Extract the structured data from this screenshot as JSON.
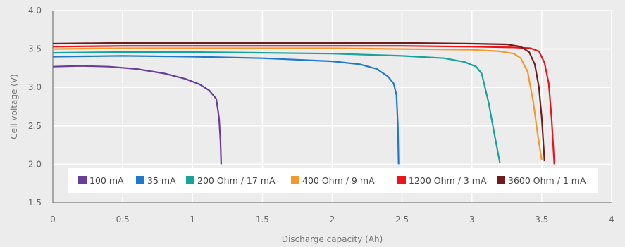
{
  "chart_data": {
    "type": "line",
    "xlabel": "Discharge capacity (Ah)",
    "ylabel": "Cell voltage (V)",
    "xlim": [
      0,
      4
    ],
    "ylim": [
      1.5,
      4.0
    ],
    "xticks": [
      "0",
      "0.5",
      "1",
      "1.5",
      "2",
      "2.5",
      "3",
      "3.5",
      "4"
    ],
    "yticks": [
      "1.5",
      "2.0",
      "2.5",
      "3.0",
      "3.5",
      "4.0"
    ],
    "grid": true,
    "legend_position": "bottom",
    "series": [
      {
        "name": "100 mA",
        "color": "#6a3d9a",
        "points": [
          [
            0,
            3.27
          ],
          [
            0.2,
            3.28
          ],
          [
            0.4,
            3.27
          ],
          [
            0.6,
            3.24
          ],
          [
            0.8,
            3.18
          ],
          [
            0.95,
            3.11
          ],
          [
            1.05,
            3.04
          ],
          [
            1.12,
            2.96
          ],
          [
            1.17,
            2.85
          ],
          [
            1.19,
            2.6
          ],
          [
            1.2,
            2.3
          ],
          [
            1.205,
            2.0
          ]
        ]
      },
      {
        "name": "35 mA",
        "color": "#1f78c8",
        "points": [
          [
            0,
            3.4
          ],
          [
            0.5,
            3.41
          ],
          [
            1.0,
            3.4
          ],
          [
            1.5,
            3.38
          ],
          [
            2.0,
            3.34
          ],
          [
            2.2,
            3.3
          ],
          [
            2.32,
            3.24
          ],
          [
            2.4,
            3.14
          ],
          [
            2.44,
            3.05
          ],
          [
            2.46,
            2.9
          ],
          [
            2.47,
            2.5
          ],
          [
            2.475,
            2.0
          ]
        ]
      },
      {
        "name": "200 Ohm / 17 mA",
        "color": "#17a39a",
        "points": [
          [
            0,
            3.45
          ],
          [
            0.5,
            3.46
          ],
          [
            1.0,
            3.46
          ],
          [
            1.5,
            3.45
          ],
          [
            2.0,
            3.44
          ],
          [
            2.5,
            3.41
          ],
          [
            2.8,
            3.38
          ],
          [
            2.95,
            3.33
          ],
          [
            3.03,
            3.27
          ],
          [
            3.07,
            3.18
          ],
          [
            3.12,
            2.8
          ],
          [
            3.16,
            2.4
          ],
          [
            3.2,
            2.02
          ]
        ]
      },
      {
        "name": "400 Ohm / 9 mA",
        "color": "#f39a2e",
        "points": [
          [
            0,
            3.5
          ],
          [
            0.5,
            3.51
          ],
          [
            1.0,
            3.51
          ],
          [
            1.5,
            3.51
          ],
          [
            2.0,
            3.51
          ],
          [
            2.5,
            3.5
          ],
          [
            3.0,
            3.49
          ],
          [
            3.2,
            3.47
          ],
          [
            3.3,
            3.44
          ],
          [
            3.35,
            3.38
          ],
          [
            3.4,
            3.2
          ],
          [
            3.44,
            2.8
          ],
          [
            3.47,
            2.4
          ],
          [
            3.5,
            2.05
          ]
        ]
      },
      {
        "name": "1200 Ohm / 3 mA",
        "color": "#e8151b",
        "points": [
          [
            0,
            3.53
          ],
          [
            0.5,
            3.54
          ],
          [
            1.0,
            3.54
          ],
          [
            1.5,
            3.54
          ],
          [
            2.0,
            3.54
          ],
          [
            2.5,
            3.54
          ],
          [
            3.0,
            3.53
          ],
          [
            3.3,
            3.52
          ],
          [
            3.42,
            3.51
          ],
          [
            3.48,
            3.47
          ],
          [
            3.52,
            3.32
          ],
          [
            3.55,
            3.05
          ],
          [
            3.57,
            2.6
          ],
          [
            3.59,
            2.0
          ]
        ]
      },
      {
        "name": "3600 Ohm / 1 mA",
        "color": "#6e1c1c",
        "points": [
          [
            0,
            3.57
          ],
          [
            0.5,
            3.58
          ],
          [
            1.0,
            3.58
          ],
          [
            1.5,
            3.58
          ],
          [
            2.0,
            3.58
          ],
          [
            2.5,
            3.58
          ],
          [
            3.0,
            3.57
          ],
          [
            3.25,
            3.56
          ],
          [
            3.35,
            3.53
          ],
          [
            3.41,
            3.46
          ],
          [
            3.45,
            3.3
          ],
          [
            3.48,
            3.0
          ],
          [
            3.5,
            2.6
          ],
          [
            3.52,
            2.04
          ]
        ]
      }
    ]
  }
}
